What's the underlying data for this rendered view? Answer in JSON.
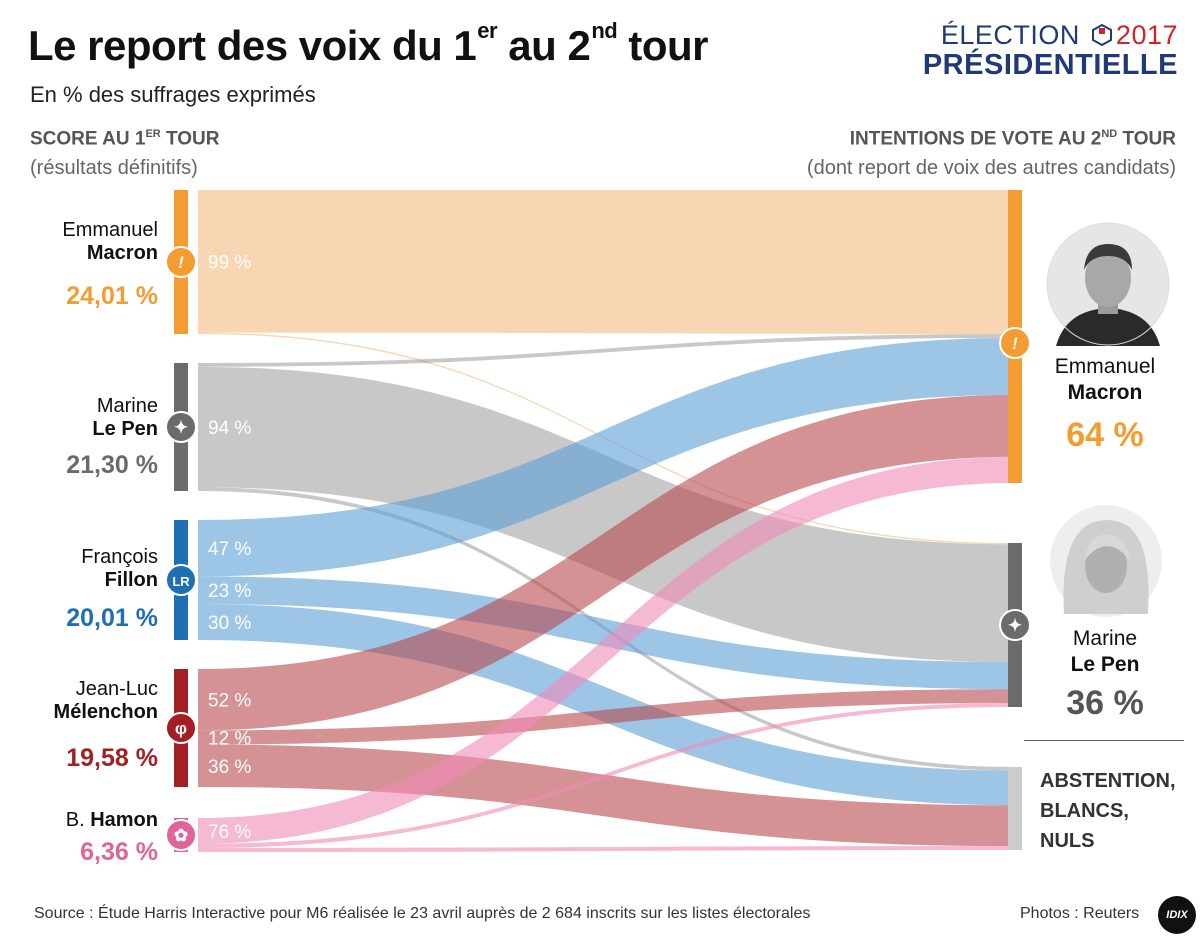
{
  "header": {
    "title_part1": "Le report des voix du 1",
    "title_sup1": "er",
    "title_part2": " au 2",
    "title_sup2": "nd",
    "title_part3": " tour",
    "subtitle": "En % des suffrages exprimés",
    "logo_line1": "ÉLECTION",
    "logo_year": "2017",
    "logo_line2": "PRÉSIDENTIELLE"
  },
  "left_header": {
    "label": "SCORE AU 1",
    "sup": "ER",
    "label_end": " TOUR",
    "sub": "(résultats définitifs)"
  },
  "right_header": {
    "label": "INTENTIONS DE VOTE AU 2",
    "sup": "ND",
    "label_end": " TOUR",
    "sub": "(dont report de voix des autres candidats)"
  },
  "colors": {
    "macron": "#f39c32",
    "lepen": "#6b6b6b",
    "fillon": "#1f6fb5",
    "melenchon": "#a31f24",
    "hamon": "#e0649a",
    "abstention": "#cccccc"
  },
  "chart_data": {
    "type": "sankey",
    "first_round": [
      {
        "id": "macron",
        "first": "Emmanuel",
        "last": "Macron",
        "score": "24,01 %",
        "icon": "macron-logo-icon"
      },
      {
        "id": "lepen",
        "first": "Marine",
        "last": "Le Pen",
        "score": "21,30 %",
        "icon": "flame-icon"
      },
      {
        "id": "fillon",
        "first": "François",
        "last": "Fillon",
        "score": "20,01 %",
        "icon": "lr-logo-icon"
      },
      {
        "id": "melenchon",
        "first": "Jean-Luc",
        "last": "Mélenchon",
        "score": "19,58 %",
        "icon": "phi-logo-icon"
      },
      {
        "id": "hamon",
        "first": "B.",
        "last": "Hamon",
        "score": "6,36 %",
        "icon": "rose-icon"
      }
    ],
    "second_round": [
      {
        "id": "macron",
        "first": "Emmanuel",
        "last": "Macron",
        "score": "64 %"
      },
      {
        "id": "lepen",
        "first": "Marine",
        "last": "Le Pen",
        "score": "36 %"
      },
      {
        "id": "abstention",
        "lines": [
          "ABSTENTION,",
          "BLANCS,",
          "NULS"
        ]
      }
    ],
    "flows": [
      {
        "from": "macron",
        "to": "macron",
        "value": 99,
        "label": "99 %"
      },
      {
        "from": "macron",
        "to": "lepen",
        "value": 1
      },
      {
        "from": "lepen",
        "to": "macron",
        "value": 3
      },
      {
        "from": "lepen",
        "to": "lepen",
        "value": 94,
        "label": "94 %"
      },
      {
        "from": "lepen",
        "to": "abstention",
        "value": 3
      },
      {
        "from": "fillon",
        "to": "macron",
        "value": 47,
        "label": "47 %"
      },
      {
        "from": "fillon",
        "to": "lepen",
        "value": 23,
        "label": "23 %"
      },
      {
        "from": "fillon",
        "to": "abstention",
        "value": 30,
        "label": "30 %"
      },
      {
        "from": "melenchon",
        "to": "macron",
        "value": 52,
        "label": "52 %"
      },
      {
        "from": "melenchon",
        "to": "lepen",
        "value": 12,
        "label": "12 %"
      },
      {
        "from": "melenchon",
        "to": "abstention",
        "value": 36,
        "label": "36 %"
      },
      {
        "from": "hamon",
        "to": "macron",
        "value": 76,
        "label": "76 %"
      },
      {
        "from": "hamon",
        "to": "lepen",
        "value": 12
      },
      {
        "from": "hamon",
        "to": "abstention",
        "value": 12
      }
    ]
  },
  "footer": {
    "source": "Source : Étude Harris Interactive pour M6 réalisée le 23 avril auprès de 2 684 inscrits sur les listes électorales",
    "photos": "Photos : Reuters",
    "brand": "IDIX"
  }
}
